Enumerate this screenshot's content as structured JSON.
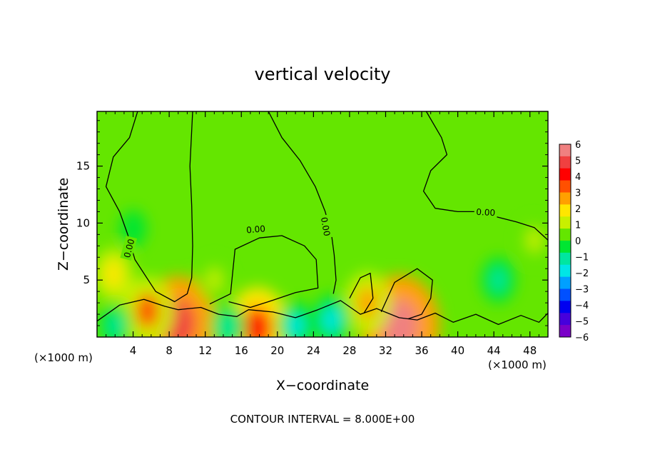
{
  "chart_data": {
    "type": "heatmap",
    "title": "vertical velocity",
    "xlabel": "X−coordinate",
    "ylabel": "Z−coordinate",
    "x_unit": "(×1000 m)",
    "y_unit": "(×1000 m)",
    "xlim": [
      0,
      50
    ],
    "ylim": [
      0,
      19.8
    ],
    "xticks": [
      "4",
      "8",
      "12",
      "16",
      "20",
      "24",
      "28",
      "32",
      "36",
      "40",
      "44",
      "48"
    ],
    "xtick_values": [
      4,
      8,
      12,
      16,
      20,
      24,
      28,
      32,
      36,
      40,
      44,
      48
    ],
    "yticks": [
      "5",
      "10",
      "15"
    ],
    "ytick_values": [
      5,
      10,
      15
    ],
    "contour_label": "0.00",
    "contour_interval_text": "CONTOUR INTERVAL = 8.000E+00",
    "colorbar": {
      "range": [
        -6,
        6
      ],
      "tick_labels": [
        "6",
        "5",
        "4",
        "3",
        "2",
        "1",
        "0",
        "−1",
        "−2",
        "−3",
        "−4",
        "−5",
        "−6"
      ],
      "tick_values": [
        6,
        5,
        4,
        3,
        2,
        1,
        0,
        -1,
        -2,
        -3,
        -4,
        -5,
        -6
      ],
      "colors": [
        "#7a00c8",
        "#4600dc",
        "#0000f0",
        "#0050ff",
        "#00a0ff",
        "#00e6e6",
        "#00e6a0",
        "#00e632",
        "#64e600",
        "#c8f000",
        "#ffe600",
        "#ffa000",
        "#ff5000",
        "#ff0000",
        "#f04040",
        "#f08080"
      ]
    },
    "background_value": 0.2,
    "features": [
      {
        "x": 9.0,
        "z": 1.2,
        "value": 5.0
      },
      {
        "x": 17.8,
        "z": 0.8,
        "value": 4.0
      },
      {
        "x": 33.6,
        "z": 1.0,
        "value": 5.5
      },
      {
        "x": 5.6,
        "z": 2.3,
        "value": 3.0
      },
      {
        "x": 30.0,
        "z": 3.0,
        "value": 2.5
      },
      {
        "x": 1.8,
        "z": 5.5,
        "value": 1.8
      },
      {
        "x": 13.0,
        "z": 5.0,
        "value": 1.2
      },
      {
        "x": 26.0,
        "z": 1.5,
        "value": -1.8
      },
      {
        "x": 22.0,
        "z": 1.0,
        "value": -1.6
      },
      {
        "x": 14.5,
        "z": 0.9,
        "value": -1.5
      },
      {
        "x": 44.5,
        "z": 5.0,
        "value": -1.4
      },
      {
        "x": 4.0,
        "z": 9.5,
        "value": -0.7
      },
      {
        "x": 2.0,
        "z": 1.0,
        "value": -1.2
      },
      {
        "x": 48.5,
        "z": 8.5,
        "value": 1.3
      }
    ],
    "contours": [
      [
        [
          4.5,
          19.8
        ],
        [
          3.6,
          17.5
        ],
        [
          1.8,
          15.8
        ],
        [
          1.0,
          13.2
        ],
        [
          2.5,
          11.0
        ],
        [
          3.4,
          9.0
        ],
        [
          4.2,
          6.8
        ],
        [
          6.5,
          4.0
        ],
        [
          8.6,
          3.1
        ],
        [
          10.0,
          3.8
        ],
        [
          10.5,
          5.2
        ],
        [
          10.6,
          8.0
        ],
        [
          10.5,
          11.5
        ],
        [
          10.3,
          15.0
        ],
        [
          10.6,
          19.8
        ]
      ],
      [
        [
          19.0,
          19.8
        ],
        [
          20.5,
          17.5
        ],
        [
          22.5,
          15.5
        ],
        [
          24.2,
          13.2
        ],
        [
          25.3,
          11.0
        ],
        [
          26.0,
          9.0
        ],
        [
          26.3,
          7.2
        ],
        [
          26.5,
          5.0
        ],
        [
          26.2,
          3.8
        ]
      ],
      [
        [
          12.5,
          2.9
        ],
        [
          14.8,
          3.8
        ],
        [
          15.3,
          7.7
        ],
        [
          18.0,
          8.7
        ],
        [
          20.5,
          8.9
        ],
        [
          23.0,
          8.0
        ],
        [
          24.3,
          6.8
        ],
        [
          24.5,
          4.3
        ],
        [
          22.0,
          3.9
        ],
        [
          19.0,
          3.1
        ],
        [
          17.0,
          2.6
        ],
        [
          14.6,
          3.1
        ]
      ],
      [
        [
          31.5,
          2.2
        ],
        [
          33.0,
          4.8
        ],
        [
          35.5,
          6.0
        ],
        [
          37.2,
          5.0
        ],
        [
          37.0,
          3.4
        ],
        [
          36.0,
          2.0
        ],
        [
          34.5,
          1.6
        ]
      ],
      [
        [
          36.5,
          19.8
        ],
        [
          38.2,
          17.5
        ],
        [
          38.8,
          16.0
        ],
        [
          37.0,
          14.6
        ],
        [
          36.2,
          12.8
        ],
        [
          37.5,
          11.3
        ],
        [
          40.0,
          11.0
        ],
        [
          42.0,
          11.0
        ],
        [
          44.0,
          10.6
        ],
        [
          46.5,
          10.1
        ],
        [
          48.5,
          9.6
        ],
        [
          50.0,
          8.5
        ]
      ],
      [
        [
          0.0,
          1.4
        ],
        [
          2.5,
          2.8
        ],
        [
          5.2,
          3.3
        ],
        [
          7.5,
          2.7
        ],
        [
          9.0,
          2.4
        ],
        [
          11.5,
          2.6
        ],
        [
          13.5,
          2.0
        ],
        [
          15.5,
          1.8
        ],
        [
          16.8,
          2.4
        ],
        [
          19.5,
          2.2
        ],
        [
          22.0,
          1.7
        ],
        [
          24.5,
          2.4
        ],
        [
          27.0,
          3.2
        ],
        [
          29.2,
          2.0
        ],
        [
          31.0,
          2.5
        ],
        [
          33.5,
          1.7
        ],
        [
          35.5,
          1.5
        ],
        [
          37.5,
          2.1
        ],
        [
          39.5,
          1.3
        ],
        [
          42.0,
          2.0
        ],
        [
          44.5,
          1.1
        ],
        [
          47.0,
          1.9
        ],
        [
          49.0,
          1.3
        ],
        [
          50.0,
          2.1
        ]
      ],
      [
        [
          28.0,
          3.4
        ],
        [
          29.2,
          5.2
        ],
        [
          30.3,
          5.6
        ],
        [
          30.6,
          3.4
        ],
        [
          29.6,
          2.1
        ]
      ]
    ],
    "contour_labels": [
      {
        "x": 3.5,
        "z": 7.8,
        "text": "0.00",
        "angle": -75
      },
      {
        "x": 17.6,
        "z": 9.5,
        "text": "0.00",
        "angle": -5
      },
      {
        "x": 25.4,
        "z": 9.7,
        "text": "0.00",
        "angle": 80
      },
      {
        "x": 43.1,
        "z": 11.0,
        "text": "0.00",
        "angle": 3
      }
    ]
  }
}
